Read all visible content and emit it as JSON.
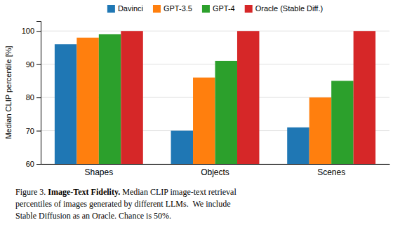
{
  "chart_data": {
    "type": "bar",
    "categories": [
      "Shapes",
      "Objects",
      "Scenes"
    ],
    "series": [
      {
        "name": "Davinci",
        "values": [
          96,
          70,
          71
        ]
      },
      {
        "name": "GPT-3.5",
        "values": [
          98,
          86,
          80
        ]
      },
      {
        "name": "GPT-4",
        "values": [
          99,
          91,
          85
        ]
      },
      {
        "name": "Oracle (Stable Diff.)",
        "values": [
          100,
          100,
          100
        ]
      }
    ],
    "ylabel": "Median CLIP percentile [%]",
    "ylim": [
      60,
      103
    ],
    "yticks": [
      60,
      70,
      80,
      90,
      100
    ],
    "grid": true,
    "legend": "top",
    "annotations": [
      "Figure 3. ",
      "Image-Text Fidelity.",
      " Median CLIP image-text retrieval",
      "percentiles of images generated by different LLMs.  We include",
      "Stable Diffusion as an Oracle. Chance is 50%."
    ]
  }
}
